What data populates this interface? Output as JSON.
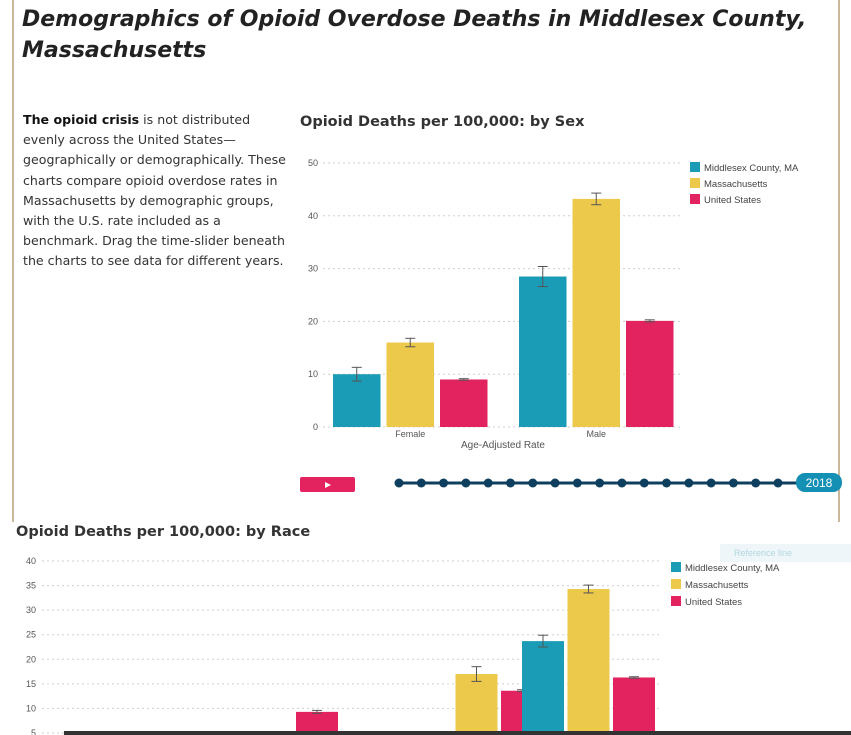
{
  "page": {
    "title": "Demographics of Opioid Overdose Deaths in Middlesex County, Massachusetts",
    "intro_bold": "The opioid crisis",
    "intro_rest": " is not distributed evenly across the United States—geographically or demographically. These charts compare opioid overdose rates in Massachusetts by demographic groups, with the U.S. rate included as a benchmark. Drag the time-slider beneath the charts to see data for different years."
  },
  "slider": {
    "year_label": "2018",
    "play_icon": "play-icon",
    "tick_count": 18,
    "value": 2018
  },
  "ghost_tab_label": "Reference line",
  "colors": {
    "middlesex": "#1a9cb7",
    "massachusetts": "#ecc94b",
    "united_states": "#e32260",
    "slider_track": "#0f3f5f"
  },
  "chart_data": [
    {
      "type": "bar",
      "title": "Opioid Deaths per 100,000: by Sex",
      "xlabel": "Age-Adjusted Rate",
      "ylabel": "",
      "ylim": [
        0,
        50
      ],
      "yticks": [
        0,
        10,
        20,
        30,
        40,
        50
      ],
      "grid": true,
      "legend_position": "top-right",
      "categories": [
        "Female",
        "Male"
      ],
      "series": [
        {
          "name": "Middlesex County, MA",
          "values": [
            10.0,
            28.5
          ],
          "err": [
            1.3,
            1.9
          ]
        },
        {
          "name": "Massachusetts",
          "values": [
            16.0,
            43.2
          ],
          "err": [
            0.8,
            1.1
          ]
        },
        {
          "name": "United States",
          "values": [
            9.0,
            20.1
          ],
          "err": [
            0.15,
            0.2
          ]
        }
      ]
    },
    {
      "type": "bar",
      "title": "Opioid Deaths per 100,000: by Race",
      "xlabel": "",
      "ylabel": "",
      "ylim": [
        5,
        40
      ],
      "yticks": [
        5,
        10,
        15,
        20,
        25,
        30,
        35,
        40
      ],
      "grid": true,
      "legend_position": "top-right",
      "categories": [
        "",
        "",
        ""
      ],
      "series": [
        {
          "name": "Middlesex County, MA",
          "values": [
            null,
            null,
            23.7
          ],
          "err": [
            0,
            0,
            1.2
          ]
        },
        {
          "name": "Massachusetts",
          "values": [
            null,
            17.0,
            34.3
          ],
          "err": [
            0,
            1.5,
            0.8
          ]
        },
        {
          "name": "United States",
          "values": [
            9.3,
            13.6,
            16.3
          ],
          "err": [
            0.3,
            0.2,
            0.15
          ]
        }
      ]
    }
  ]
}
